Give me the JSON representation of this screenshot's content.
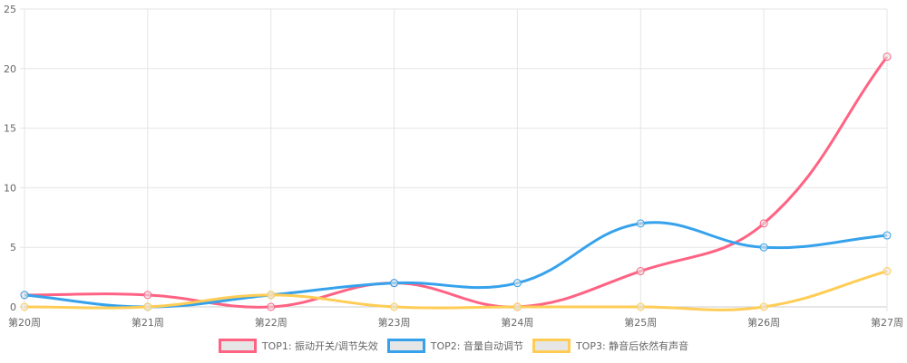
{
  "chart_data": {
    "type": "line",
    "categories": [
      "第20周",
      "第21周",
      "第22周",
      "第23周",
      "第24周",
      "第25周",
      "第26周",
      "第27周"
    ],
    "ylim": [
      0,
      25
    ],
    "yticks": [
      0,
      5,
      10,
      15,
      20,
      25
    ],
    "grid": true,
    "legend_position": "bottom",
    "series": [
      {
        "name": "TOP1: 振动开关/调节失效",
        "color": "#ff6384",
        "values": [
          1,
          1,
          0,
          2,
          0,
          3,
          7,
          21
        ]
      },
      {
        "name": "TOP2: 音量自动调节",
        "color": "#36a2eb",
        "values": [
          1,
          0,
          1,
          2,
          2,
          7,
          5,
          6
        ]
      },
      {
        "name": "TOP3: 静音后依然有声音",
        "color": "#ffcd56",
        "values": [
          0,
          0,
          1,
          0,
          0,
          0,
          0,
          3
        ]
      }
    ]
  }
}
